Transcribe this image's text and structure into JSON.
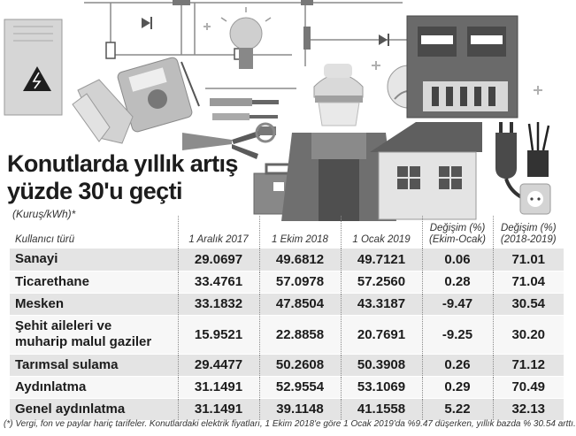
{
  "header": {
    "title_line1": "Konutlarda yıllık artış",
    "title_line2": "yüzde 30'u geçti",
    "unit_note": "(Kuruş/kWh)*"
  },
  "table": {
    "columns": [
      "Kullanıcı türü",
      "1 Aralık 2017",
      "1 Ekim 2018",
      "1 Ocak 2019",
      "Değişim (%)",
      "Değişim (%)"
    ],
    "columns_sub": [
      "",
      "",
      "",
      "",
      "(Ekim-Ocak)",
      "(2018-2019)"
    ],
    "rows": [
      {
        "line1": "Sanayi",
        "line2": "",
        "v": [
          "29.0697",
          "49.6812",
          "49.7121",
          "0.06",
          "71.01"
        ]
      },
      {
        "line1": "Ticarethane",
        "line2": "",
        "v": [
          "33.4761",
          "57.0978",
          "57.2560",
          "0.28",
          "71.04"
        ]
      },
      {
        "line1": "Mesken",
        "line2": "",
        "v": [
          "33.1832",
          "47.8504",
          "43.3187",
          "-9.47",
          "30.54"
        ]
      },
      {
        "line1": "Şehit aileleri ve",
        "line2": "muharip malul gaziler",
        "v": [
          "15.9521",
          "22.8858",
          "20.7691",
          "-9.25",
          "30.20"
        ]
      },
      {
        "line1": "Tarımsal sulama",
        "line2": "",
        "v": [
          "29.4477",
          "50.2608",
          "50.3908",
          "0.26",
          "71.12"
        ]
      },
      {
        "line1": "Aydınlatma",
        "line2": "",
        "v": [
          "31.1491",
          "52.9554",
          "53.1069",
          "0.29",
          "70.49"
        ]
      },
      {
        "line1": "Genel aydınlatma",
        "line2": "",
        "v": [
          "31.1491",
          "39.1148",
          "41.1558",
          "5.22",
          "32.13"
        ]
      }
    ]
  },
  "footnote": "(*) Vergi, fon ve paylar hariç tarifeler. Konutlardaki elektrik fiyatları, 1 Ekim 2018'e göre 1 Ocak 2019'da %9.47 düşerken, yıllık bazda % 30.54 arttı.",
  "icons": [
    "electrical-panel-icon",
    "lightbulb-icon",
    "multimeter-icon",
    "gloves-icon",
    "pliers-icon",
    "screwdriver-icon",
    "toolbox-icon",
    "electrician-icon",
    "house-icon",
    "electric-meter-icon",
    "plug-icon",
    "socket-icon",
    "diode-icon",
    "resistor-icon"
  ]
}
